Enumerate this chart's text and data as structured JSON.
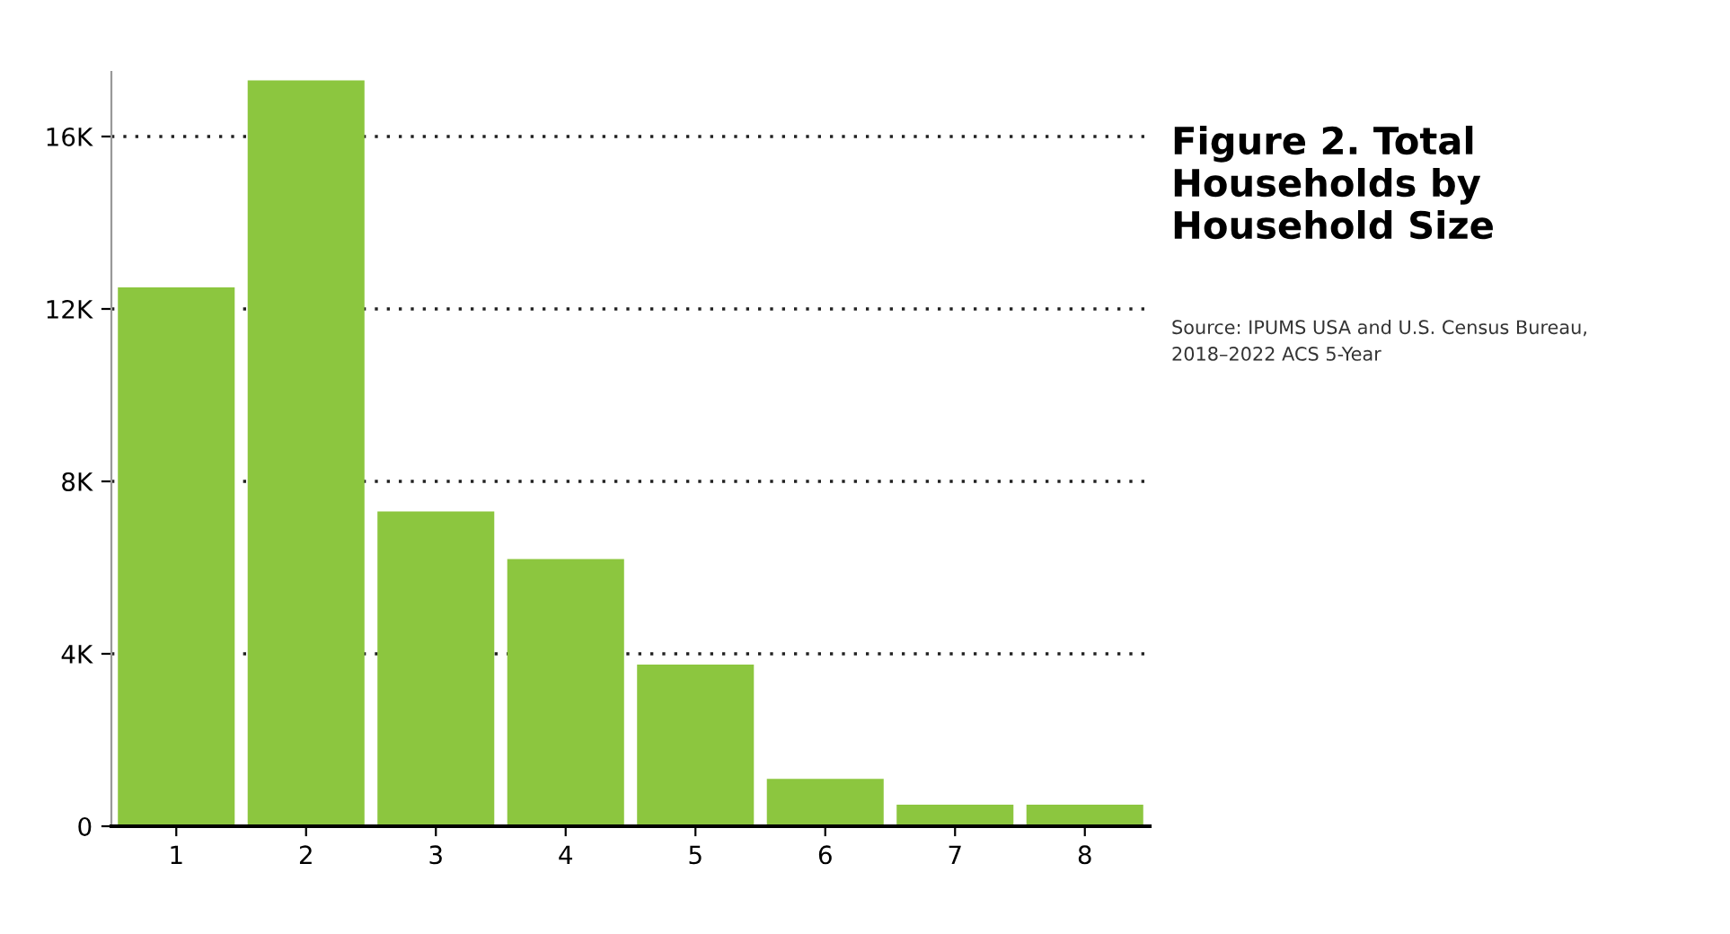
{
  "chart_data": {
    "type": "bar",
    "title": "Figure 2. Total Households by Household Size",
    "annotations": [
      "Source: IPUMS USA and U.S. Census Bureau, 2018–2022 ACS 5-Year"
    ],
    "categories": [
      "1",
      "2",
      "3",
      "4",
      "5",
      "6",
      "7",
      "8"
    ],
    "values": [
      12500,
      17300,
      7300,
      6200,
      3750,
      1100,
      500,
      500
    ],
    "color": "#8cc63f",
    "ylim": [
      0,
      17500
    ],
    "yticks": [
      0,
      {
        "value": 4000,
        "label": "4K"
      },
      {
        "value": 8000,
        "label": "8K"
      },
      {
        "value": 12000,
        "label": "12K"
      },
      {
        "value": 16000,
        "label": "16K"
      }
    ],
    "grid": "y",
    "legend": false
  }
}
